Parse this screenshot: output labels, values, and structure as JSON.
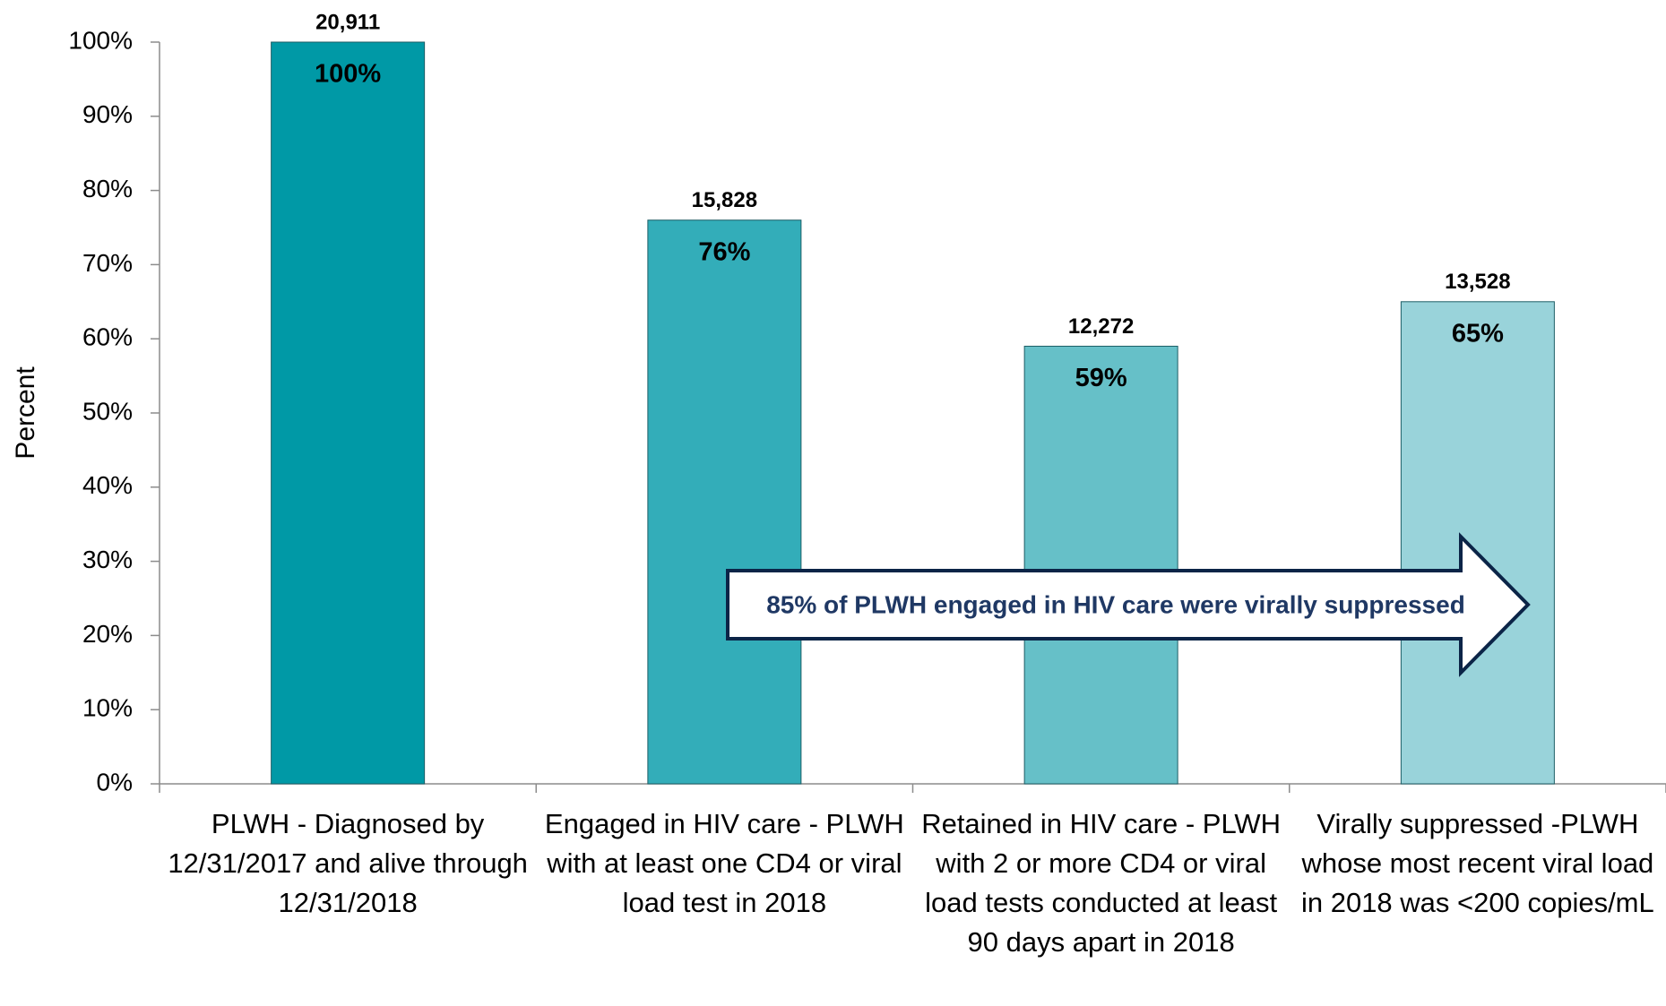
{
  "chart_data": {
    "type": "bar",
    "categories": [
      "PLWH - Diagnosed by 12/31/2017 and alive through 12/31/2018",
      "Engaged in HIV care - PLWH with at least one CD4 or viral load test in 2018",
      "Retained in HIV care - PLWH with 2 or more CD4 or viral load tests conducted at least 90 days apart in 2018",
      "Virally suppressed -PLWH whose most recent viral load in 2018 was <200 copies/mL"
    ],
    "values": [
      100,
      76,
      59,
      65
    ],
    "value_labels": [
      "100%",
      "76%",
      "59%",
      "65%"
    ],
    "counts": [
      20911,
      15828,
      12272,
      13528
    ],
    "count_labels": [
      "20,911",
      "15,828",
      "12,272",
      "13,528"
    ],
    "colors": [
      "#0099a6",
      "#33adb9",
      "#66c0c8",
      "#99d3da"
    ],
    "y_label": "Percent",
    "annotation": "85% of PLWH engaged in HIV care were virally suppressed",
    "ylim": [
      0,
      100
    ],
    "yticks": [
      {
        "value": 0,
        "label": "0%"
      },
      {
        "value": 10,
        "label": "10%"
      },
      {
        "value": 20,
        "label": "20%"
      },
      {
        "value": 30,
        "label": "30%"
      },
      {
        "value": 40,
        "label": "40%"
      },
      {
        "value": 50,
        "label": "50%"
      },
      {
        "value": 60,
        "label": "60%"
      },
      {
        "value": 70,
        "label": "70%"
      },
      {
        "value": 80,
        "label": "80%"
      },
      {
        "value": 90,
        "label": "90%"
      },
      {
        "value": 100,
        "label": "100%"
      }
    ]
  }
}
